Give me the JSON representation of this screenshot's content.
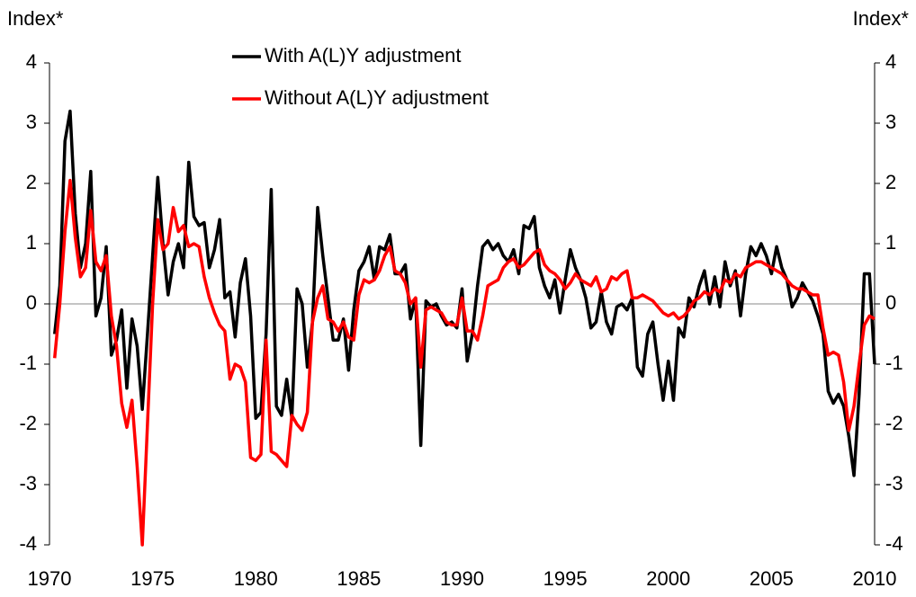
{
  "chart_data": {
    "type": "line",
    "y_label": "Index*",
    "y2_label": "Index*",
    "xlim": [
      1970,
      2010
    ],
    "xticks": [
      1970,
      1975,
      1980,
      1985,
      1990,
      1995,
      2000,
      2005,
      2010
    ],
    "ylim": [
      -4,
      4
    ],
    "yticks": [
      -4,
      -3,
      -2,
      -1,
      0,
      1,
      2,
      3,
      4
    ],
    "y2lim": [
      -4,
      4
    ],
    "y2ticks": [
      -4,
      -3,
      -2,
      -1,
      0,
      1,
      2,
      3,
      4
    ],
    "x": [
      1970.25,
      1970.5,
      1970.75,
      1971,
      1971.25,
      1971.5,
      1971.75,
      1972,
      1972.25,
      1972.5,
      1972.75,
      1973,
      1973.25,
      1973.5,
      1973.75,
      1974,
      1974.25,
      1974.5,
      1974.75,
      1975,
      1975.25,
      1975.5,
      1975.75,
      1976,
      1976.25,
      1976.5,
      1976.75,
      1977,
      1977.25,
      1977.5,
      1977.75,
      1978,
      1978.25,
      1978.5,
      1978.75,
      1979,
      1979.25,
      1979.5,
      1979.75,
      1980,
      1980.25,
      1980.5,
      1980.75,
      1981,
      1981.25,
      1981.5,
      1981.75,
      1982,
      1982.25,
      1982.5,
      1982.75,
      1983,
      1983.25,
      1983.5,
      1983.75,
      1984,
      1984.25,
      1984.5,
      1984.75,
      1985,
      1985.25,
      1985.5,
      1985.75,
      1986,
      1986.25,
      1986.5,
      1986.75,
      1987,
      1987.25,
      1987.5,
      1987.75,
      1988,
      1988.25,
      1988.5,
      1988.75,
      1989,
      1989.25,
      1989.5,
      1989.75,
      1990,
      1990.25,
      1990.5,
      1990.75,
      1991,
      1991.25,
      1991.5,
      1991.75,
      1992,
      1992.25,
      1992.5,
      1992.75,
      1993,
      1993.25,
      1993.5,
      1993.75,
      1994,
      1994.25,
      1994.5,
      1994.75,
      1995,
      1995.25,
      1995.5,
      1995.75,
      1996,
      1996.25,
      1996.5,
      1996.75,
      1997,
      1997.25,
      1997.5,
      1997.75,
      1998,
      1998.25,
      1998.5,
      1998.75,
      1999,
      1999.25,
      1999.5,
      1999.75,
      2000,
      2000.25,
      2000.5,
      2000.75,
      2001,
      2001.25,
      2001.5,
      2001.75,
      2002,
      2002.25,
      2002.5,
      2002.75,
      2003,
      2003.25,
      2003.5,
      2003.75,
      2004,
      2004.25,
      2004.5,
      2004.75,
      2005,
      2005.25,
      2005.5,
      2005.75,
      2006,
      2006.25,
      2006.5,
      2006.75,
      2007,
      2007.25,
      2007.5,
      2007.75,
      2008,
      2008.25,
      2008.5,
      2008.75,
      2009,
      2009.25,
      2009.5,
      2009.75,
      2010
    ],
    "series": [
      {
        "name": "With A(L)Y adjustment",
        "color": "#000000",
        "values": [
          -0.5,
          0.3,
          2.7,
          3.2,
          1.5,
          0.6,
          1.0,
          2.2,
          -0.2,
          0.1,
          0.95,
          -0.85,
          -0.6,
          -0.1,
          -1.4,
          -0.25,
          -0.7,
          -1.75,
          -0.5,
          0.8,
          2.1,
          1.0,
          0.15,
          0.7,
          1.0,
          0.6,
          2.35,
          1.45,
          1.3,
          1.35,
          0.6,
          0.9,
          1.4,
          0.1,
          0.2,
          -0.55,
          0.35,
          0.75,
          -0.2,
          -1.9,
          -1.8,
          -0.5,
          1.9,
          -1.7,
          -1.85,
          -1.25,
          -1.9,
          0.25,
          0.0,
          -1.05,
          -0.3,
          1.6,
          0.8,
          0.1,
          -0.6,
          -0.6,
          -0.25,
          -1.1,
          -0.1,
          0.55,
          0.7,
          0.95,
          0.4,
          0.95,
          0.9,
          1.15,
          0.5,
          0.5,
          0.65,
          -0.25,
          0.1,
          -2.35,
          0.05,
          -0.05,
          0.0,
          -0.2,
          -0.35,
          -0.3,
          -0.4,
          0.25,
          -0.95,
          -0.5,
          0.3,
          0.95,
          1.05,
          0.9,
          1.0,
          0.8,
          0.7,
          0.9,
          0.5,
          1.3,
          1.25,
          1.45,
          0.6,
          0.3,
          0.1,
          0.4,
          -0.15,
          0.4,
          0.9,
          0.6,
          0.4,
          0.1,
          -0.4,
          -0.3,
          0.2,
          -0.3,
          -0.5,
          -0.05,
          0.0,
          -0.1,
          0.1,
          -1.05,
          -1.2,
          -0.5,
          -0.3,
          -1.0,
          -1.6,
          -0.95,
          -1.6,
          -0.4,
          -0.55,
          0.1,
          -0.05,
          0.3,
          0.55,
          0.0,
          0.45,
          -0.05,
          0.7,
          0.3,
          0.55,
          -0.2,
          0.5,
          0.95,
          0.8,
          1.0,
          0.8,
          0.5,
          0.95,
          0.6,
          0.4,
          -0.05,
          0.1,
          0.35,
          0.2,
          0.05,
          -0.2,
          -0.5,
          -1.45,
          -1.65,
          -1.5,
          -1.7,
          -2.2,
          -2.85,
          -1.5,
          0.5,
          0.5,
          -1.0
        ]
      },
      {
        "name": "Without A(L)Y adjustment",
        "color": "#ff0000",
        "values": [
          -0.9,
          0.0,
          1.2,
          2.05,
          1.1,
          0.45,
          0.6,
          1.55,
          0.7,
          0.55,
          0.8,
          -0.2,
          -0.7,
          -1.65,
          -2.05,
          -1.6,
          -2.7,
          -4.0,
          -2.0,
          0.0,
          1.4,
          0.9,
          1.0,
          1.6,
          1.2,
          1.3,
          0.95,
          1.0,
          0.95,
          0.45,
          0.1,
          -0.15,
          -0.35,
          -0.45,
          -1.25,
          -1.0,
          -1.05,
          -1.3,
          -2.55,
          -2.6,
          -2.5,
          -0.6,
          -2.45,
          -2.5,
          -2.6,
          -2.7,
          -1.85,
          -2.0,
          -2.1,
          -1.8,
          -0.3,
          0.1,
          0.3,
          -0.25,
          -0.3,
          -0.45,
          -0.3,
          -0.55,
          -0.6,
          0.15,
          0.4,
          0.35,
          0.4,
          0.55,
          0.8,
          0.95,
          0.55,
          0.5,
          0.35,
          0.0,
          0.1,
          -1.05,
          -0.1,
          -0.05,
          -0.1,
          -0.15,
          -0.3,
          -0.35,
          -0.35,
          0.1,
          -0.45,
          -0.45,
          -0.6,
          -0.2,
          0.3,
          0.35,
          0.4,
          0.6,
          0.7,
          0.75,
          0.6,
          0.65,
          0.75,
          0.85,
          0.9,
          0.65,
          0.55,
          0.5,
          0.4,
          0.25,
          0.35,
          0.5,
          0.4,
          0.35,
          0.3,
          0.45,
          0.2,
          0.25,
          0.45,
          0.4,
          0.5,
          0.55,
          0.1,
          0.1,
          0.15,
          0.1,
          0.05,
          -0.05,
          -0.15,
          -0.2,
          -0.15,
          -0.25,
          -0.2,
          -0.1,
          0.05,
          0.1,
          0.2,
          0.15,
          0.25,
          0.2,
          0.4,
          0.35,
          0.5,
          0.45,
          0.6,
          0.65,
          0.7,
          0.7,
          0.65,
          0.6,
          0.55,
          0.5,
          0.4,
          0.3,
          0.25,
          0.25,
          0.2,
          0.15,
          0.15,
          -0.4,
          -0.85,
          -0.8,
          -0.85,
          -1.3,
          -2.1,
          -1.7,
          -1.0,
          -0.35,
          -0.2,
          -0.25
        ]
      }
    ]
  }
}
